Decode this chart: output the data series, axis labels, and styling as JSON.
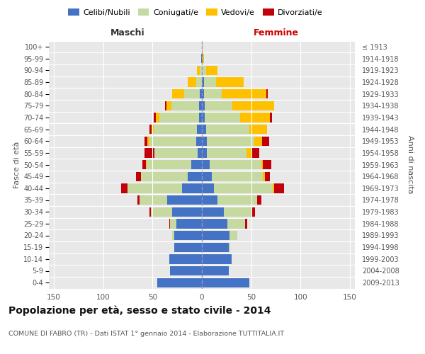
{
  "age_groups": [
    "0-4",
    "5-9",
    "10-14",
    "15-19",
    "20-24",
    "25-29",
    "30-34",
    "35-39",
    "40-44",
    "45-49",
    "50-54",
    "55-59",
    "60-64",
    "65-69",
    "70-74",
    "75-79",
    "80-84",
    "85-89",
    "90-94",
    "95-99",
    "100+"
  ],
  "birth_years": [
    "2009-2013",
    "2004-2008",
    "1999-2003",
    "1994-1998",
    "1989-1993",
    "1984-1988",
    "1979-1983",
    "1974-1978",
    "1969-1973",
    "1964-1968",
    "1959-1963",
    "1954-1958",
    "1949-1953",
    "1944-1948",
    "1939-1943",
    "1934-1938",
    "1929-1933",
    "1924-1928",
    "1919-1923",
    "1914-1918",
    "≤ 1913"
  ],
  "maschi": {
    "celibi": [
      45,
      32,
      33,
      28,
      28,
      26,
      30,
      35,
      20,
      14,
      11,
      4,
      6,
      5,
      3,
      3,
      2,
      0,
      0,
      1,
      0
    ],
    "coniugati": [
      0,
      0,
      0,
      0,
      2,
      6,
      22,
      28,
      55,
      48,
      45,
      44,
      47,
      44,
      40,
      28,
      16,
      6,
      2,
      0,
      0
    ],
    "vedovi": [
      0,
      0,
      0,
      0,
      0,
      0,
      0,
      0,
      0,
      0,
      1,
      0,
      2,
      2,
      4,
      5,
      12,
      8,
      3,
      0,
      0
    ],
    "divorziati": [
      0,
      0,
      0,
      0,
      0,
      1,
      1,
      2,
      7,
      5,
      3,
      10,
      3,
      2,
      2,
      1,
      0,
      0,
      0,
      0,
      0
    ]
  },
  "femmine": {
    "nubili": [
      48,
      27,
      30,
      27,
      28,
      26,
      22,
      16,
      12,
      10,
      8,
      5,
      5,
      4,
      3,
      3,
      2,
      2,
      0,
      1,
      0
    ],
    "coniugate": [
      0,
      0,
      0,
      2,
      8,
      18,
      28,
      40,
      60,
      52,
      52,
      40,
      48,
      44,
      36,
      28,
      18,
      12,
      4,
      0,
      0
    ],
    "vedove": [
      0,
      0,
      0,
      0,
      0,
      0,
      0,
      0,
      1,
      2,
      2,
      5,
      8,
      18,
      30,
      42,
      45,
      28,
      12,
      1,
      1
    ],
    "divorziate": [
      0,
      0,
      0,
      0,
      0,
      2,
      4,
      4,
      10,
      5,
      8,
      8,
      7,
      0,
      2,
      0,
      2,
      0,
      0,
      0,
      0
    ]
  },
  "colors": {
    "celibi": "#4472C4",
    "coniugati": "#c5d9a0",
    "vedovi": "#ffc000",
    "divorziati": "#c0000b"
  },
  "title": "Popolazione per età, sesso e stato civile - 2014",
  "subtitle": "COMUNE DI FABRO (TR) - Dati ISTAT 1° gennaio 2014 - Elaborazione TUTTITALIA.IT",
  "xlabel_left": "Maschi",
  "xlabel_right": "Femmine",
  "ylabel_left": "Fasce di età",
  "ylabel_right": "Anni di nascita",
  "xlim": 155,
  "legend_labels": [
    "Celibi/Nubili",
    "Coniugati/e",
    "Vedovi/e",
    "Divorziati/e"
  ],
  "bg_color": "#ffffff",
  "plot_bg": "#e8e8e8"
}
